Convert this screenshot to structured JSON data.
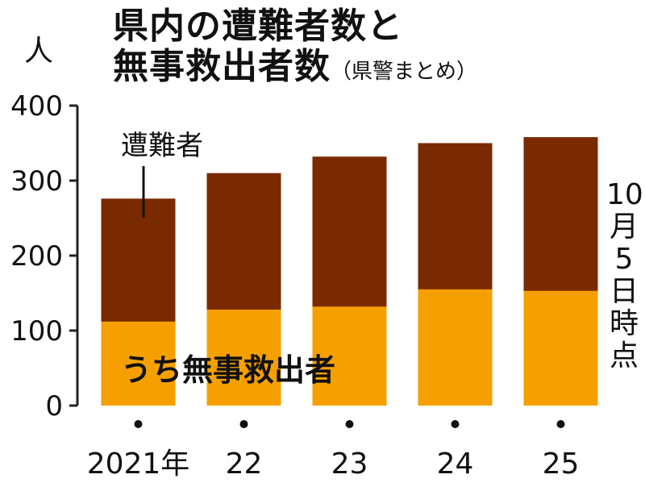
{
  "title_line1": "県内の遭難者数と",
  "title_line2": "無事救出者数",
  "source_note": "（県警まとめ）",
  "unit_label": "人",
  "date_note": [
    "10",
    "月",
    "5",
    "日",
    "時",
    "点"
  ],
  "colors": {
    "total": "#7a2a00",
    "rescued": "#f5a000",
    "axis": "#222222"
  },
  "chart_data": {
    "type": "bar",
    "categories": [
      "2021年",
      "22",
      "23",
      "24",
      "25"
    ],
    "series": [
      {
        "name": "遭難者",
        "values": [
          276,
          310,
          332,
          350,
          358
        ]
      },
      {
        "name": "うち無事救出者",
        "values": [
          112,
          128,
          132,
          155,
          153
        ]
      }
    ],
    "ylim": [
      0,
      400
    ],
    "yticks": [
      0,
      100,
      200,
      300,
      400
    ],
    "stacking": "overlay",
    "annotations": {
      "total_label": "遭難者",
      "rescued_label": "うち無事救出者"
    },
    "grid": false
  }
}
